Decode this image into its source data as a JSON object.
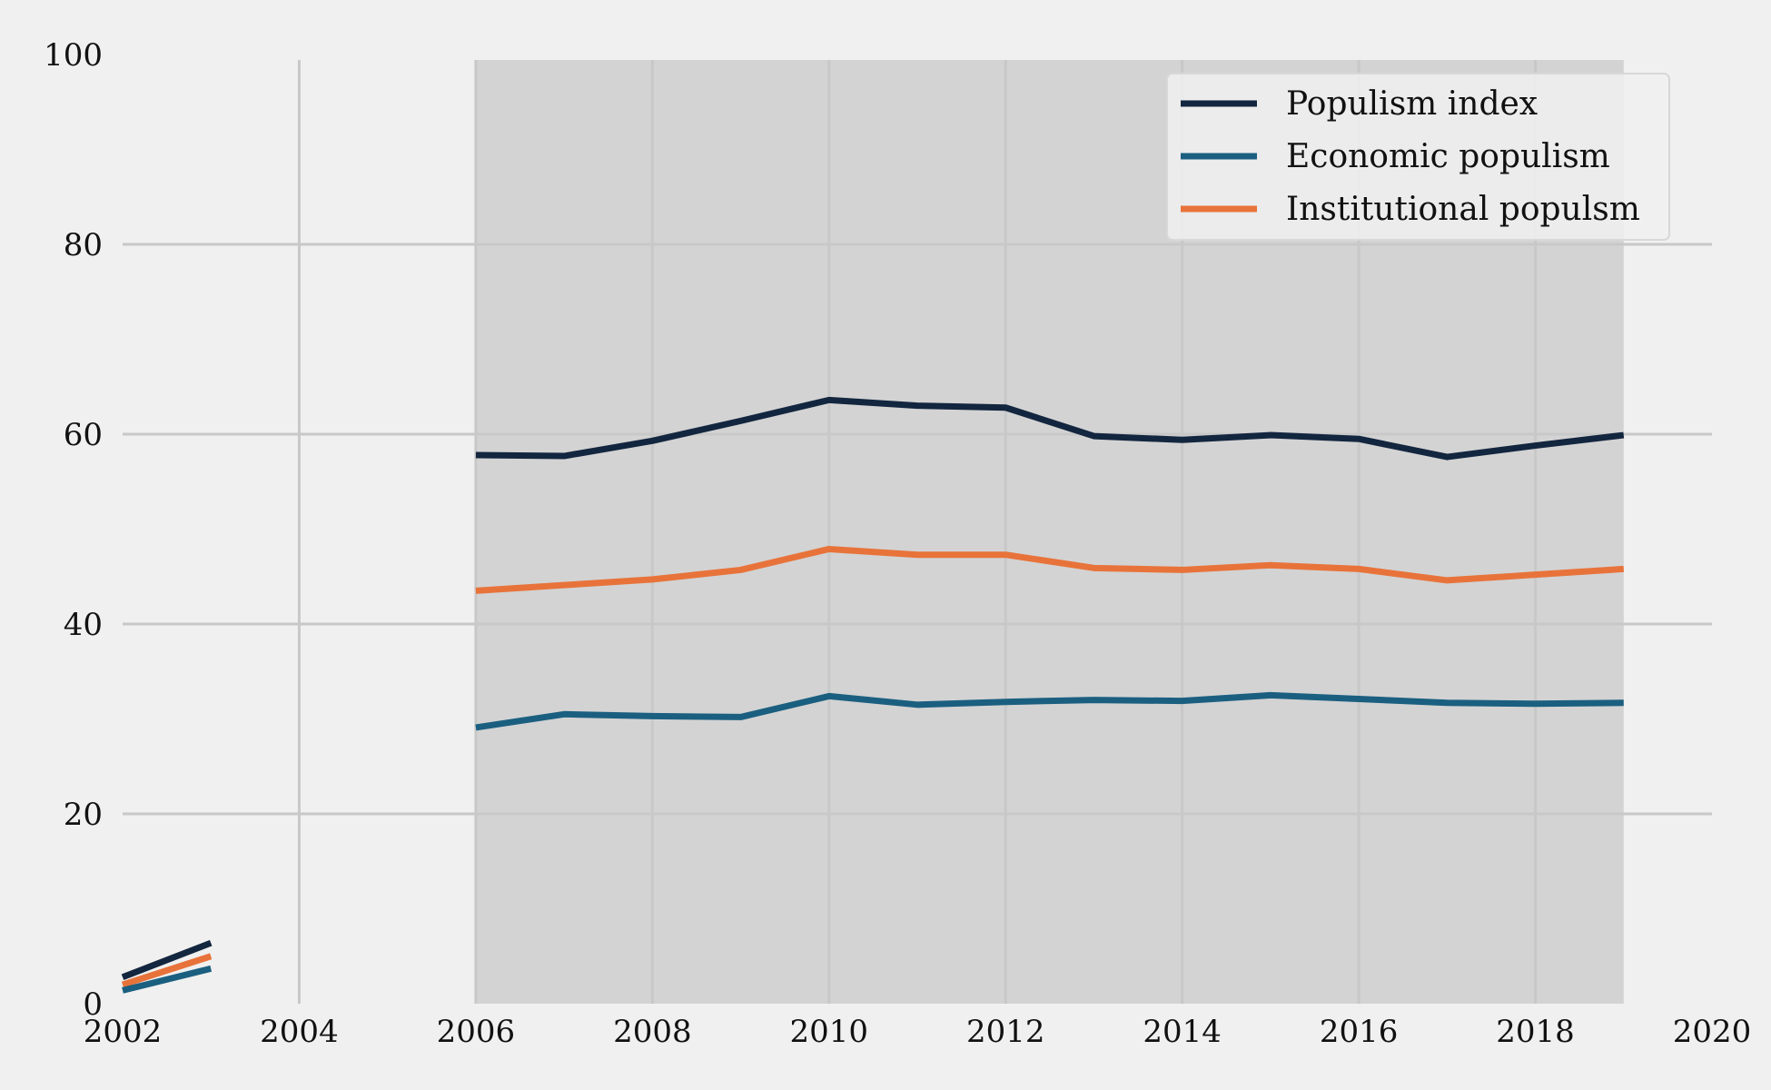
{
  "chart_data": {
    "type": "line",
    "xlim": [
      2002,
      2020
    ],
    "ylim": [
      0,
      100
    ],
    "x_ticks": [
      "2002",
      "2004",
      "2006",
      "2008",
      "2010",
      "2012",
      "2014",
      "2016",
      "2018",
      "2020"
    ],
    "y_ticks": [
      "0",
      "20",
      "40",
      "60",
      "80",
      "100"
    ],
    "grid": true,
    "legend_position": "top-right",
    "highlight_range": [
      2006,
      2019
    ],
    "colors": {
      "background": "#f0f0f0",
      "highlight": "#d3d3d3",
      "grid": "#c8c8c8",
      "populism_index": "#13263f",
      "economic_populism": "#1b5f80",
      "institutional_populsm": "#e8733a"
    },
    "series": [
      {
        "name": "Populism index",
        "x": [
          2006,
          2007,
          2008,
          2009,
          2010,
          2011,
          2012,
          2013,
          2014,
          2015,
          2016,
          2017,
          2018,
          2019
        ],
        "values": [
          57.8,
          57.7,
          59.3,
          61.4,
          63.6,
          63.0,
          62.8,
          59.8,
          59.4,
          59.9,
          59.5,
          57.6,
          58.8,
          59.9
        ]
      },
      {
        "name": "Economic populism",
        "x": [
          2006,
          2007,
          2008,
          2009,
          2010,
          2011,
          2012,
          2013,
          2014,
          2015,
          2016,
          2017,
          2018,
          2019
        ],
        "values": [
          29.1,
          30.5,
          30.3,
          30.2,
          32.4,
          31.5,
          31.8,
          32.0,
          31.9,
          32.5,
          32.1,
          31.7,
          31.6,
          31.7
        ]
      },
      {
        "name": "Institutional populsm",
        "x": [
          2006,
          2007,
          2008,
          2009,
          2010,
          2011,
          2012,
          2013,
          2014,
          2015,
          2016,
          2017,
          2018,
          2019
        ],
        "values": [
          43.5,
          44.1,
          44.7,
          45.7,
          47.9,
          47.3,
          47.3,
          45.9,
          45.7,
          46.2,
          45.8,
          44.6,
          45.2,
          45.8
        ]
      }
    ]
  }
}
